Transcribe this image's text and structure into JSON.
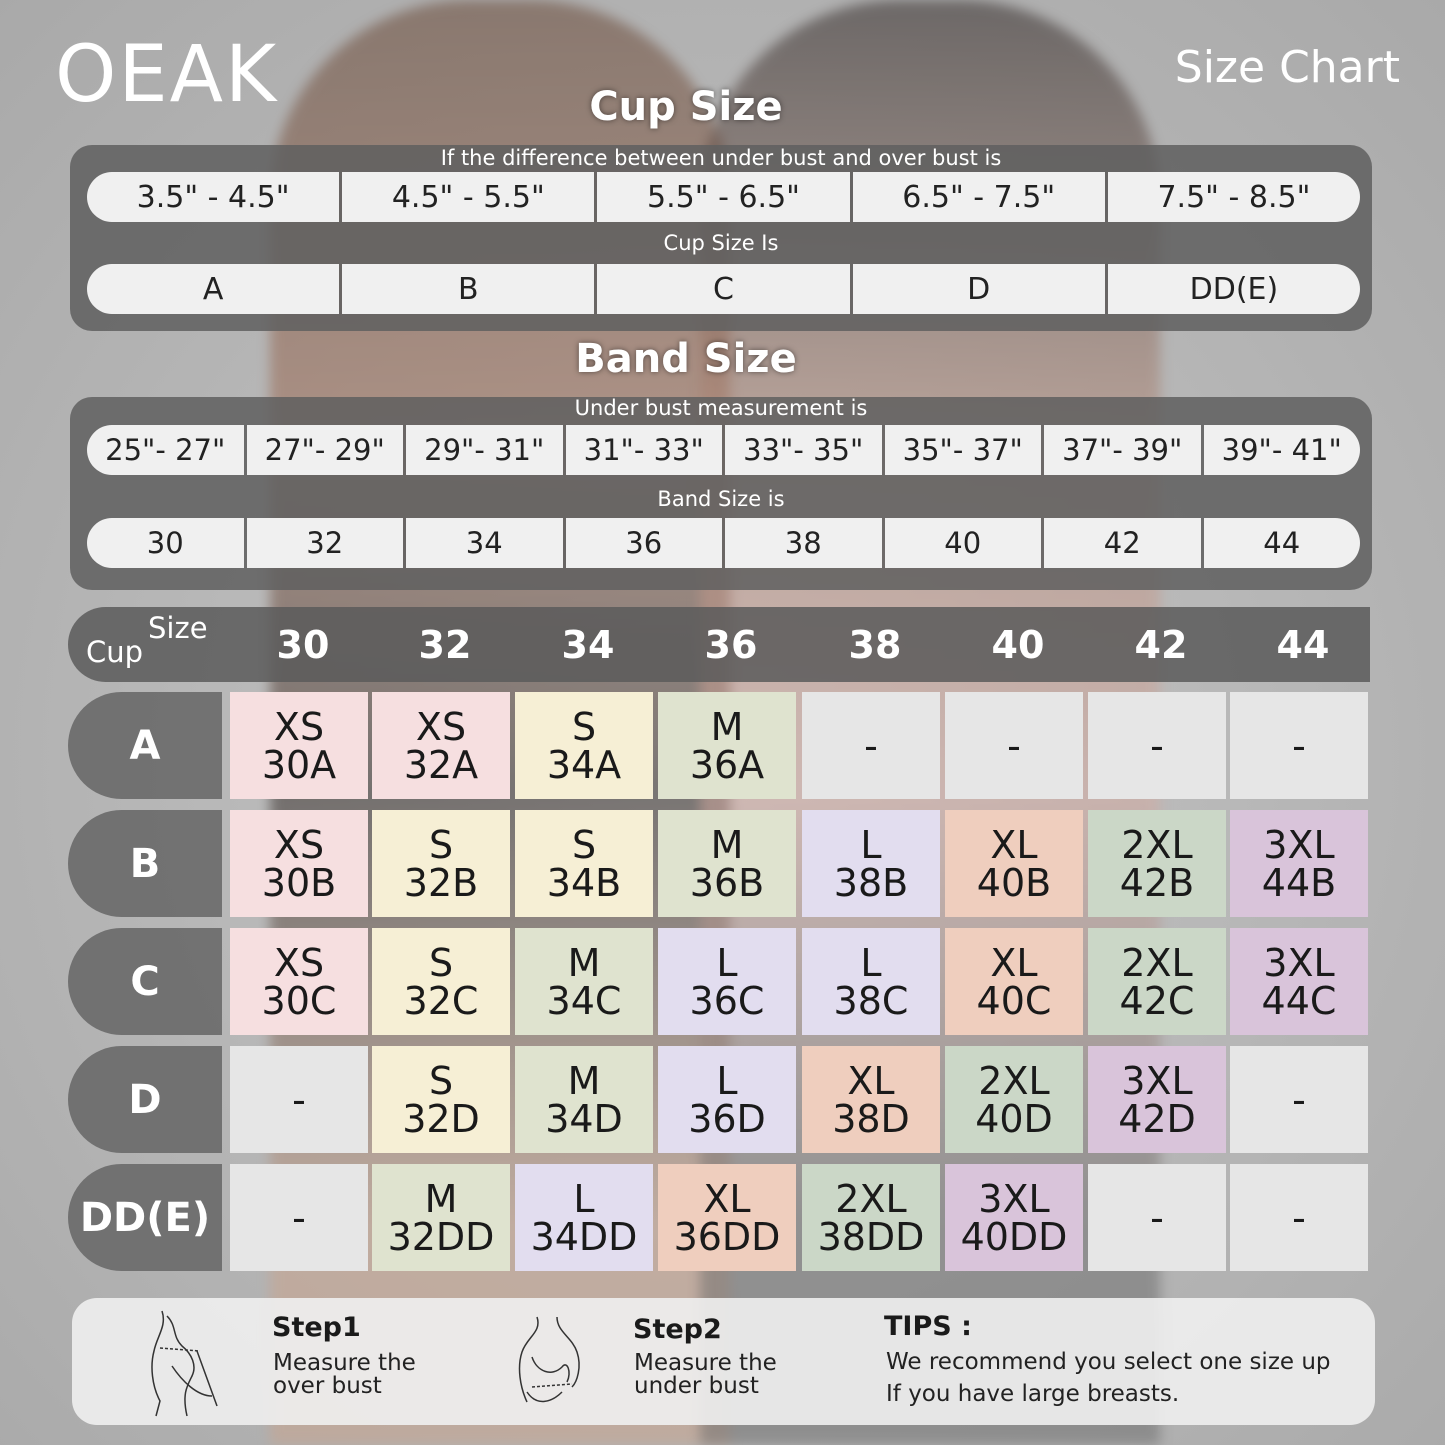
{
  "brand": "OEAK",
  "page_title": "Size Chart",
  "cup_section": {
    "title": "Cup Size",
    "difference_caption": "If the  difference between under bust and over bust is",
    "differences": [
      "3.5\" -  4.5\"",
      "4.5\" -  5.5\"",
      "5.5\" -  6.5\"",
      "6.5\" -  7.5\"",
      "7.5\" -  8.5\""
    ],
    "cup_caption": "Cup Size Is",
    "cups": [
      "A",
      "B",
      "C",
      "D",
      "DD(E)"
    ]
  },
  "band_section": {
    "title": "Band Size",
    "under_caption": "Under bust measurement is",
    "measurements": [
      "25\"- 27\"",
      "27\"- 29\"",
      "29\"- 31\"",
      "31\"- 33\"",
      "33\"- 35\"",
      "35\"- 37\"",
      "37\"- 39\"",
      "39\"- 41\""
    ],
    "band_caption": "Band Size is",
    "bands": [
      "30",
      "32",
      "34",
      "36",
      "38",
      "40",
      "42",
      "44"
    ]
  },
  "grid": {
    "corner_cup": "Cup",
    "corner_size": "Size",
    "columns": [
      "30",
      "32",
      "34",
      "36",
      "38",
      "40",
      "42",
      "44"
    ],
    "rows": [
      {
        "cup": "A",
        "cells": [
          [
            "XS",
            "30A"
          ],
          [
            "XS",
            "32A"
          ],
          [
            "S",
            "34A"
          ],
          [
            "M",
            "36A"
          ],
          [
            "-"
          ],
          [
            "-"
          ],
          [
            "-"
          ],
          [
            "-"
          ]
        ]
      },
      {
        "cup": "B",
        "cells": [
          [
            "XS",
            "30B"
          ],
          [
            "S",
            "32B"
          ],
          [
            "S",
            "34B"
          ],
          [
            "M",
            "36B"
          ],
          [
            "L",
            "38B"
          ],
          [
            "XL",
            "40B"
          ],
          [
            "2XL",
            "42B"
          ],
          [
            "3XL",
            "44B"
          ]
        ]
      },
      {
        "cup": "C",
        "cells": [
          [
            "XS",
            "30C"
          ],
          [
            "S",
            "32C"
          ],
          [
            "M",
            "34C"
          ],
          [
            "L",
            "36C"
          ],
          [
            "L",
            "38C"
          ],
          [
            "XL",
            "40C"
          ],
          [
            "2XL",
            "42C"
          ],
          [
            "3XL",
            "44C"
          ]
        ]
      },
      {
        "cup": "D",
        "cells": [
          [
            "-"
          ],
          [
            "S",
            "32D"
          ],
          [
            "M",
            "34D"
          ],
          [
            "L",
            "36D"
          ],
          [
            "XL",
            "38D"
          ],
          [
            "2XL",
            "40D"
          ],
          [
            "3XL",
            "42D"
          ],
          [
            "-"
          ]
        ]
      },
      {
        "cup": "DD(E)",
        "cells": [
          [
            "-"
          ],
          [
            "M",
            "32DD"
          ],
          [
            "L",
            "34DD"
          ],
          [
            "XL",
            "36DD"
          ],
          [
            "2XL",
            "38DD"
          ],
          [
            "3XL",
            "40DD"
          ],
          [
            "-"
          ],
          [
            "-"
          ]
        ]
      }
    ],
    "size_colors": {
      "XS": "#f6dfe0",
      "S": "#f6efd5",
      "M": "#dfe3cf",
      "L": "#e2ddef",
      "XL": "#efcebe",
      "2XL": "#cbd7c7",
      "3XL": "#d9c4da",
      "-": "#e6e6e6"
    }
  },
  "footer": {
    "step1_title": "Step1",
    "step1_line1": "Measure the",
    "step1_line2": "over bust",
    "step2_title": "Step2",
    "step2_line1": "Measure the",
    "step2_line2": "under bust",
    "tips_title": "TIPS :",
    "tips_line1": "We recommend you select one size up",
    "tips_line2": "If you have large breasts."
  }
}
